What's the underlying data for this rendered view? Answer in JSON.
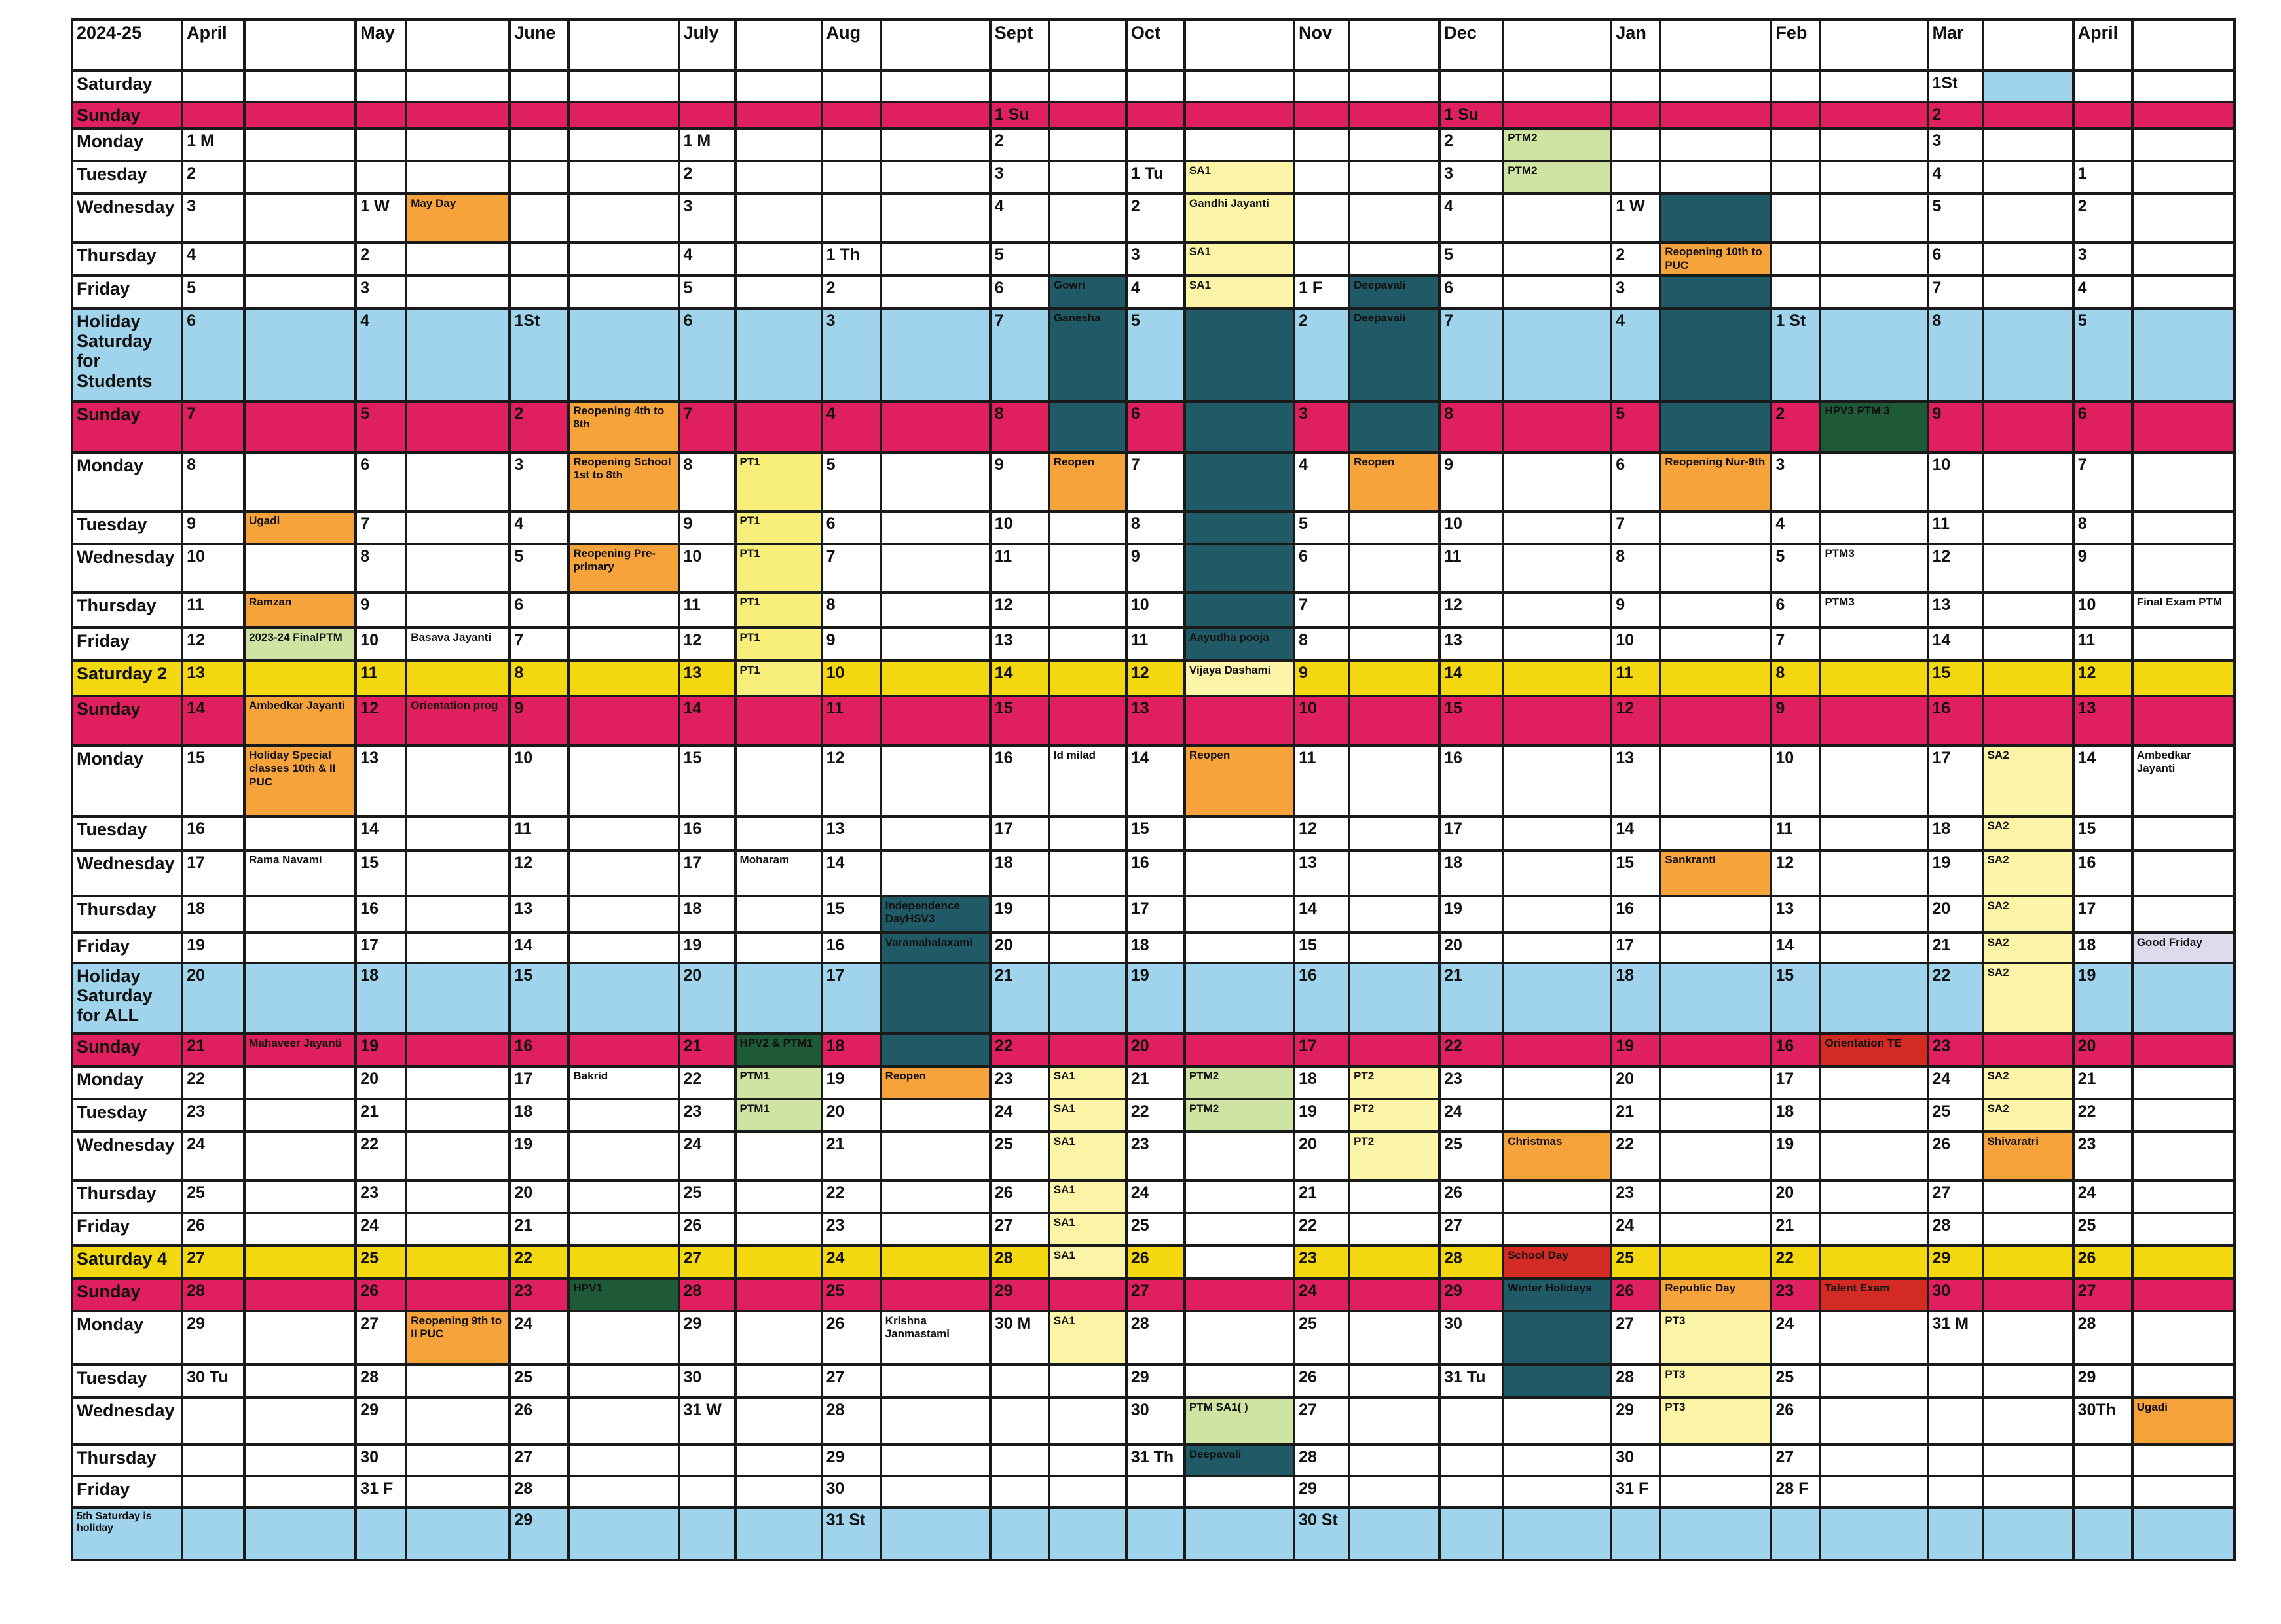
{
  "header": [
    "2024-25",
    "April",
    "",
    "May",
    "",
    "June",
    "",
    "July",
    "",
    "Aug",
    "",
    "Sept",
    "",
    "Oct",
    "",
    "Nov",
    "",
    "Dec",
    "",
    "Jan",
    "",
    "Feb",
    "",
    "Mar",
    "",
    "April",
    ""
  ],
  "colors": {
    "sunday": "#e01f5e",
    "holiday_saturday": "#9fd4ec",
    "second_fourth_saturday": "#f4d80f",
    "exam_light_yellow": "#fcf4a6",
    "pt_yellow": "#f8ef7a",
    "event_orange": "#f5a33a",
    "ptm_green": "#cfe4a2",
    "holiday_teal": "#1f5a66",
    "dark_green": "#1f5a38",
    "special_red": "#d42a24",
    "light_grey": "#dcdcec"
  },
  "rows": [
    [
      "Saturday",
      "",
      "",
      "",
      "",
      "",
      "",
      "",
      "",
      "",
      "",
      "",
      "",
      "",
      "",
      "",
      "",
      "",
      "",
      "",
      "",
      "",
      "",
      "1St",
      "",
      "",
      ""
    ],
    [
      "Sunday",
      "",
      "",
      "",
      "",
      "",
      "",
      "",
      "",
      "",
      "",
      "1 Su",
      "",
      "",
      "",
      "",
      "",
      "1 Su",
      "",
      "",
      "",
      "",
      "",
      "2",
      "",
      "",
      ""
    ],
    [
      "Monday",
      "1 M",
      "",
      "",
      "",
      "",
      "",
      "1 M",
      "",
      "",
      "",
      "2",
      "",
      "",
      "",
      "",
      "",
      "2",
      "PTM2",
      "",
      "",
      "",
      "",
      "3",
      "",
      "",
      ""
    ],
    [
      "Tuesday",
      "2",
      "",
      "",
      "",
      "",
      "",
      "2",
      "",
      "",
      "",
      "3",
      "",
      "1 Tu",
      "SA1",
      "",
      "",
      "3",
      "PTM2",
      "",
      "",
      "",
      "",
      "4",
      "",
      "1",
      ""
    ],
    [
      "Wednesday",
      "3",
      "",
      "1 W",
      "May Day",
      "",
      "",
      "3",
      "",
      "",
      "",
      "4",
      "",
      "2",
      "Gandhi Jayanti",
      "",
      "",
      "4",
      "",
      "1 W",
      "",
      "",
      "",
      "5",
      "",
      "2",
      ""
    ],
    [
      "Thursday",
      "4",
      "",
      "2",
      "",
      "",
      "",
      "4",
      "",
      "1 Th",
      "",
      "5",
      "",
      "3",
      "SA1",
      "",
      "",
      "5",
      "",
      "2",
      "Reopening 10th to PUC",
      "",
      "",
      "6",
      "",
      "3",
      ""
    ],
    [
      "Friday",
      "5",
      "",
      "3",
      "",
      "",
      "",
      "5",
      "",
      "2",
      "",
      "6",
      "Gowri",
      "4",
      "SA1",
      "1 F",
      "Deepavali",
      "6",
      "",
      "3",
      "",
      "",
      "",
      "7",
      "",
      "4",
      ""
    ],
    [
      "Holiday Saturday for Students",
      "6",
      "",
      "4",
      "",
      "1St",
      "",
      "6",
      "",
      "3",
      "",
      "7",
      "Ganesha",
      "5",
      "",
      "2",
      "Deepavali",
      "7",
      "",
      "4",
      "",
      "1 St",
      "",
      "8",
      "",
      "5",
      ""
    ],
    [
      "Sunday",
      "7",
      "",
      "5",
      "",
      "2",
      "Reopening 4th to 8th",
      "7",
      "",
      "4",
      "",
      "8",
      "",
      "6",
      "",
      "3",
      "",
      "8",
      "",
      "5",
      "",
      "2",
      "HPV3 PTM 3",
      "9",
      "",
      "6",
      ""
    ],
    [
      "Monday",
      "8",
      "",
      "6",
      "",
      "3",
      "Reopening School 1st to 8th",
      "8",
      "PT1",
      "5",
      "",
      "9",
      "Reopen",
      "7",
      "",
      "4",
      "Reopen",
      "9",
      "",
      "6",
      "Reopening Nur-9th",
      "3",
      "",
      "10",
      "",
      "7",
      ""
    ],
    [
      "Tuesday",
      "9",
      "Ugadi",
      "7",
      "",
      "4",
      "",
      "9",
      "PT1",
      "6",
      "",
      "10",
      "",
      "8",
      "",
      "5",
      "",
      "10",
      "",
      "7",
      "",
      "4",
      "",
      "11",
      "",
      "8",
      ""
    ],
    [
      "Wednesday",
      "10",
      "",
      "8",
      "",
      "5",
      "Reopening Pre-primary",
      "10",
      "PT1",
      "7",
      "",
      "11",
      "",
      "9",
      "",
      "6",
      "",
      "11",
      "",
      "8",
      "",
      "5",
      "PTM3",
      "12",
      "",
      "9",
      ""
    ],
    [
      "Thursday",
      "11",
      "Ramzan",
      "9",
      "",
      "6",
      "",
      "11",
      "PT1",
      "8",
      "",
      "12",
      "",
      "10",
      "",
      "7",
      "",
      "12",
      "",
      "9",
      "",
      "6",
      "PTM3",
      "13",
      "",
      "10",
      "Final Exam PTM"
    ],
    [
      "Friday",
      "12",
      "2023-24 FinalPTM",
      "10",
      "Basava Jayanti",
      "7",
      "",
      "12",
      "PT1",
      "9",
      "",
      "13",
      "",
      "11",
      "Aayudha pooja",
      "8",
      "",
      "13",
      "",
      "10",
      "",
      "7",
      "",
      "14",
      "",
      "11",
      ""
    ],
    [
      "Saturday 2",
      "13",
      "",
      "11",
      "",
      "8",
      "",
      "13",
      "PT1",
      "10",
      "",
      "14",
      "",
      "12",
      "Vijaya Dashami",
      "9",
      "",
      "14",
      "",
      "11",
      "",
      "8",
      "",
      "15",
      "",
      "12",
      ""
    ],
    [
      "Sunday",
      "14",
      "Ambedkar Jayanti",
      "12",
      "Orientation prog",
      "9",
      "",
      "14",
      "",
      "11",
      "",
      "15",
      "",
      "13",
      "",
      "10",
      "",
      "15",
      "",
      "12",
      "",
      "9",
      "",
      "16",
      "",
      "13",
      ""
    ],
    [
      "Monday",
      "15",
      "Holiday Special classes 10th & II PUC",
      "13",
      "",
      "10",
      "",
      "15",
      "",
      "12",
      "",
      "16",
      "Id milad",
      "14",
      "Reopen",
      "11",
      "",
      "16",
      "",
      "13",
      "",
      "10",
      "",
      "17",
      "SA2",
      "14",
      "Ambedkar Jayanti"
    ],
    [
      "Tuesday",
      "16",
      "",
      "14",
      "",
      "11",
      "",
      "16",
      "",
      "13",
      "",
      "17",
      "",
      "15",
      "",
      "12",
      "",
      "17",
      "",
      "14",
      "",
      "11",
      "",
      "18",
      "SA2",
      "15",
      ""
    ],
    [
      "Wednesday",
      "17",
      "Rama Navami",
      "15",
      "",
      "12",
      "",
      "17",
      "Moharam",
      "14",
      "",
      "18",
      "",
      "16",
      "",
      "13",
      "",
      "18",
      "",
      "15",
      "Sankranti",
      "12",
      "",
      "19",
      "SA2",
      "16",
      ""
    ],
    [
      "Thursday",
      "18",
      "",
      "16",
      "",
      "13",
      "",
      "18",
      "",
      "15",
      "Independence DayHSV3",
      "19",
      "",
      "17",
      "",
      "14",
      "",
      "19",
      "",
      "16",
      "",
      "13",
      "",
      "20",
      "SA2",
      "17",
      ""
    ],
    [
      "Friday",
      "19",
      "",
      "17",
      "",
      "14",
      "",
      "19",
      "",
      "16",
      "Varamahalaxami",
      "20",
      "",
      "18",
      "",
      "15",
      "",
      "20",
      "",
      "17",
      "",
      "14",
      "",
      "21",
      "SA2",
      "18",
      "Good Friday"
    ],
    [
      "Holiday Saturday for ALL",
      "20",
      "",
      "18",
      "",
      "15",
      "",
      "20",
      "",
      "17",
      "",
      "21",
      "",
      "19",
      "",
      "16",
      "",
      "21",
      "",
      "18",
      "",
      "15",
      "",
      "22",
      "SA2",
      "19",
      ""
    ],
    [
      "Sunday",
      "21",
      "Mahaveer Jayanti",
      "19",
      "",
      "16",
      "",
      "21",
      "HPV2 & PTM1",
      "18",
      "",
      "22",
      "",
      "20",
      "",
      "17",
      "",
      "22",
      "",
      "19",
      "",
      "16",
      "Orientation TE",
      "23",
      "",
      "20",
      ""
    ],
    [
      "Monday",
      "22",
      "",
      "20",
      "",
      "17",
      "Bakrid",
      "22",
      "PTM1",
      "19",
      "Reopen",
      "23",
      "SA1",
      "21",
      "PTM2",
      "18",
      "PT2",
      "23",
      "",
      "20",
      "",
      "17",
      "",
      "24",
      "SA2",
      "21",
      ""
    ],
    [
      "Tuesday",
      "23",
      "",
      "21",
      "",
      "18",
      "",
      "23",
      "PTM1",
      "20",
      "",
      "24",
      "SA1",
      "22",
      "PTM2",
      "19",
      "PT2",
      "24",
      "",
      "21",
      "",
      "18",
      "",
      "25",
      "SA2",
      "22",
      ""
    ],
    [
      "Wednesday",
      "24",
      "",
      "22",
      "",
      "19",
      "",
      "24",
      "",
      "21",
      "",
      "25",
      "SA1",
      "23",
      "",
      "20",
      "PT2",
      "25",
      "Christmas",
      "22",
      "",
      "19",
      "",
      "26",
      "Shivaratri",
      "23",
      ""
    ],
    [
      "Thursday",
      "25",
      "",
      "23",
      "",
      "20",
      "",
      "25",
      "",
      "22",
      "",
      "26",
      "SA1",
      "24",
      "",
      "21",
      "",
      "26",
      "",
      "23",
      "",
      "20",
      "",
      "27",
      "",
      "24",
      ""
    ],
    [
      "Friday",
      "26",
      "",
      "24",
      "",
      "21",
      "",
      "26",
      "",
      "23",
      "",
      "27",
      "SA1",
      "25",
      "",
      "22",
      "",
      "27",
      "",
      "24",
      "",
      "21",
      "",
      "28",
      "",
      "25",
      ""
    ],
    [
      "Saturday 4",
      "27",
      "",
      "25",
      "",
      "22",
      "",
      "27",
      "",
      "24",
      "",
      "28",
      "SA1",
      "26",
      "",
      "23",
      "",
      "28",
      "School Day",
      "25",
      "",
      "22",
      "",
      "29",
      "",
      "26",
      ""
    ],
    [
      "Sunday",
      "28",
      "",
      "26",
      "",
      "23",
      "HPV1",
      "28",
      "",
      "25",
      "",
      "29",
      "",
      "27",
      "",
      "24",
      "",
      "29",
      "Winter Holidays",
      "26",
      "Republic Day",
      "23",
      "Talent Exam",
      "30",
      "",
      "27",
      ""
    ],
    [
      "Monday",
      "29",
      "",
      "27",
      "Reopening 9th to II PUC",
      "24",
      "",
      "29",
      "",
      "26",
      "Krishna Janmastami",
      "30 M",
      "SA1",
      "28",
      "",
      "25",
      "",
      "30",
      "",
      "27",
      "PT3",
      "24",
      "",
      "31 M",
      "",
      "28",
      ""
    ],
    [
      "Tuesday",
      "30 Tu",
      "",
      "28",
      "",
      "25",
      "",
      "30",
      "",
      "27",
      "",
      "",
      "",
      "29",
      "",
      "26",
      "",
      "31 Tu",
      "",
      "28",
      "PT3",
      "25",
      "",
      "",
      "",
      "29",
      ""
    ],
    [
      "Wednesday",
      "",
      "",
      "29",
      "",
      "26",
      "",
      "31 W",
      "",
      "28",
      "",
      "",
      "",
      "30",
      "PTM SA1( )",
      "27",
      "",
      "",
      "",
      "29",
      "PT3",
      "26",
      "",
      "",
      "",
      "30Th",
      "Ugadi"
    ],
    [
      "Thursday",
      "",
      "",
      "30",
      "",
      "27",
      "",
      "",
      "",
      "29",
      "",
      "",
      "",
      "31 Th",
      "Deepavali",
      "28",
      "",
      "",
      "",
      "30",
      "",
      "27",
      "",
      "",
      "",
      "",
      ""
    ],
    [
      "Friday",
      "",
      "",
      "31 F",
      "",
      "28",
      "",
      "",
      "",
      "30",
      "",
      "",
      "",
      "",
      "",
      "29",
      "",
      "",
      "",
      "31 F",
      "",
      "28 F",
      "",
      "",
      "",
      "",
      ""
    ],
    [
      "5th Saturday is holiday",
      "",
      "",
      "",
      "",
      "29",
      "",
      "",
      "",
      "31 St",
      "",
      "",
      "",
      "",
      "",
      "30 St",
      "",
      "",
      "",
      "",
      "",
      "",
      "",
      "",
      "",
      "",
      ""
    ]
  ]
}
